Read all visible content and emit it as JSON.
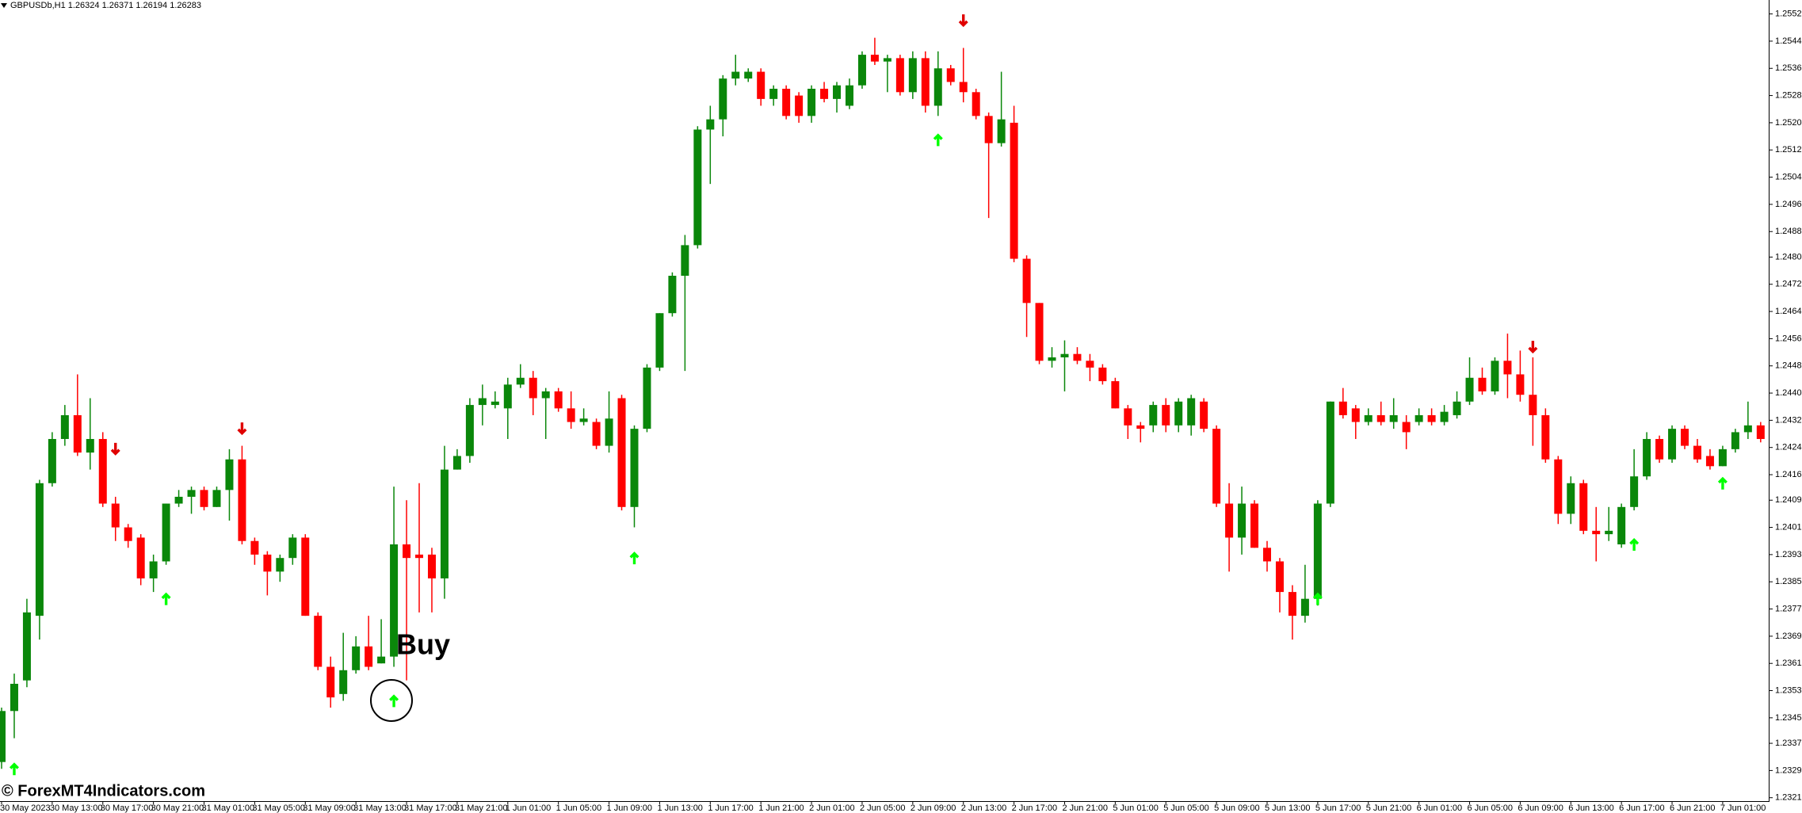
{
  "chart_data": {
    "type": "candlestick",
    "header": "GBPUSDb,H1  1.26324 1.26371 1.26194 1.26283",
    "annotation": "Buy",
    "watermark": "© ForexMT4Indicators.com",
    "up_color": "#0a870a",
    "down_color": "#ff0000",
    "buy_arrow_color": "#00ff00",
    "sell_arrow_color": "#e00000",
    "ylim": [
      1.23205,
      1.25561
    ],
    "yticks": [
      {
        "value": 1.2552,
        "label": "1.25520"
      },
      {
        "value": 1.2544,
        "label": "1.25440"
      },
      {
        "value": 1.2536,
        "label": "1.25360"
      },
      {
        "value": 1.2528,
        "label": "1.25280"
      },
      {
        "value": 1.252,
        "label": "1.25200"
      },
      {
        "value": 1.2512,
        "label": "1.25120"
      },
      {
        "value": 1.2504,
        "label": "1.25040"
      },
      {
        "value": 1.2496,
        "label": "1.24960"
      },
      {
        "value": 1.2488,
        "label": "1.24880"
      },
      1.24805,
      1.24725,
      1.24645,
      1.24565,
      1.24485,
      1.24405,
      1.24325,
      1.24245,
      1.24165,
      {
        "value": 1.2409,
        "label": "1.24090"
      },
      {
        "value": 1.2401,
        "label": "1.24010"
      },
      {
        "value": 1.2393,
        "label": "1.23930"
      },
      {
        "value": 1.2385,
        "label": "1.23850"
      },
      {
        "value": 1.2377,
        "label": "1.23770"
      },
      {
        "value": 1.2369,
        "label": "1.23690"
      },
      {
        "value": 1.2361,
        "label": "1.23610"
      },
      {
        "value": 1.2353,
        "label": "1.23530"
      },
      {
        "value": 1.2345,
        "label": "1.23450"
      },
      1.23375,
      1.23295,
      1.23215
    ],
    "categories": [
      "30 May 2023",
      null,
      null,
      null,
      "30 May 13:00",
      null,
      null,
      null,
      "30 May 17:00",
      null,
      null,
      null,
      "30 May 21:00",
      null,
      null,
      null,
      "31 May 01:00",
      null,
      null,
      null,
      "31 May 05:00",
      null,
      null,
      null,
      "31 May 09:00",
      null,
      null,
      null,
      "31 May 13:00",
      null,
      null,
      null,
      "31 May 17:00",
      null,
      null,
      null,
      "31 May 21:00",
      null,
      null,
      null,
      "1 Jun 01:00",
      null,
      null,
      null,
      "1 Jun 05:00",
      null,
      null,
      null,
      "1 Jun 09:00",
      null,
      null,
      null,
      "1 Jun 13:00",
      null,
      null,
      null,
      "1 Jun 17:00",
      null,
      null,
      null,
      "1 Jun 21:00",
      null,
      null,
      null,
      "2 Jun 01:00",
      null,
      null,
      null,
      "2 Jun 05:00",
      null,
      null,
      null,
      "2 Jun 09:00",
      null,
      null,
      null,
      "2 Jun 13:00",
      null,
      null,
      null,
      "2 Jun 17:00",
      null,
      null,
      null,
      "2 Jun 21:00",
      null,
      null,
      null,
      "5 Jun 01:00",
      null,
      null,
      null,
      "5 Jun 05:00",
      null,
      null,
      null,
      "5 Jun 09:00",
      null,
      null,
      null,
      "5 Jun 13:00",
      null,
      null,
      null,
      "5 Jun 17:00",
      null,
      null,
      null,
      "5 Jun 21:00",
      null,
      null,
      null,
      "6 Jun 01:00",
      null,
      null,
      null,
      "6 Jun 05:00",
      null,
      null,
      null,
      "6 Jun 09:00",
      null,
      null,
      null,
      "6 Jun 13:00",
      null,
      null,
      null,
      "6 Jun 17:00",
      null,
      null,
      null,
      "6 Jun 21:00",
      null,
      null,
      null,
      "7 Jun 01:00",
      null,
      null,
      null
    ],
    "open": [
      1.2332,
      1.2347,
      1.2356,
      1.2375,
      1.2414,
      1.2427,
      1.2434,
      1.2423,
      1.2427,
      1.2408,
      1.2401,
      1.2398,
      1.2386,
      1.2391,
      1.2408,
      1.241,
      1.2412,
      1.2407,
      1.2412,
      1.2421,
      1.2397,
      1.2393,
      1.2388,
      1.2392,
      1.2398,
      1.2375,
      1.236,
      1.2352,
      1.2359,
      1.2366,
      1.2361,
      1.2363,
      1.2396,
      1.2393,
      1.2393,
      1.2386,
      1.2418,
      1.2422,
      1.2437,
      1.2437,
      1.2436,
      1.2443,
      1.2445,
      1.2439,
      1.2441,
      1.2436,
      1.2432,
      1.2432,
      1.2425,
      1.2439,
      1.2407,
      1.243,
      1.2448,
      1.2464,
      1.2475,
      1.2484,
      1.2518,
      1.2521,
      1.2533,
      1.2533,
      1.2535,
      1.2527,
      1.253,
      1.2528,
      1.2522,
      1.253,
      1.2527,
      1.2525,
      1.2531,
      1.254,
      1.2538,
      1.2539,
      1.2529,
      1.2539,
      1.2525,
      1.2536,
      1.2532,
      1.2529,
      1.2522,
      1.2514,
      1.252,
      1.248,
      1.2467,
      1.245,
      1.2451,
      1.2452,
      1.245,
      1.2448,
      1.2444,
      1.2436,
      1.2431,
      1.2431,
      1.2437,
      1.2431,
      1.2431,
      1.2438,
      1.243,
      1.2408,
      1.2398,
      1.2408,
      1.2395,
      1.2391,
      1.2382,
      1.2375,
      1.238,
      1.2408,
      1.2438,
      1.2436,
      1.2432,
      1.2434,
      1.2432,
      1.2432,
      1.2432,
      1.2434,
      1.2432,
      1.2434,
      1.2438,
      1.2445,
      1.2441,
      1.245,
      1.2446,
      1.244,
      1.2434,
      1.2421,
      1.2405,
      1.2414,
      1.24,
      1.2399,
      1.2396,
      1.2407,
      1.2416,
      1.2427,
      1.2421,
      1.243,
      1.2425,
      1.2422,
      1.2419,
      1.2424,
      1.2429,
      1.2431
    ],
    "high": [
      1.2348,
      1.2358,
      1.238,
      1.2415,
      1.2429,
      1.2437,
      1.2446,
      1.2439,
      1.2429,
      1.241,
      1.2402,
      1.2399,
      1.2393,
      1.2408,
      1.2412,
      1.2413,
      1.2413,
      1.2413,
      1.2424,
      1.2425,
      1.2398,
      1.2394,
      1.2393,
      1.2399,
      1.2399,
      1.2376,
      1.2363,
      1.237,
      1.2369,
      1.2375,
      1.2374,
      1.2413,
      1.2409,
      1.2414,
      1.2395,
      1.2425,
      1.2424,
      1.2439,
      1.2443,
      1.2441,
      1.2445,
      1.2449,
      1.2447,
      1.2442,
      1.2442,
      1.2441,
      1.2436,
      1.2433,
      1.2441,
      1.244,
      1.2431,
      1.2449,
      1.2464,
      1.2476,
      1.2487,
      1.2519,
      1.2525,
      1.2534,
      1.254,
      1.2536,
      1.2536,
      1.2531,
      1.2531,
      1.2529,
      1.2531,
      1.2532,
      1.2532,
      1.2533,
      1.2541,
      1.2545,
      1.254,
      1.254,
      1.2541,
      1.2541,
      1.2541,
      1.2537,
      1.2542,
      1.253,
      1.2523,
      1.2535,
      1.2525,
      1.2481,
      1.2467,
      1.2454,
      1.2456,
      1.2454,
      1.2452,
      1.2449,
      1.2445,
      1.2437,
      1.2432,
      1.2438,
      1.2439,
      1.2439,
      1.244,
      1.2439,
      1.2431,
      1.2414,
      1.2413,
      1.2409,
      1.2397,
      1.2392,
      1.2384,
      1.239,
      1.2409,
      1.2438,
      1.2442,
      1.2437,
      1.2436,
      1.2438,
      1.2439,
      1.2434,
      1.2436,
      1.2436,
      1.2437,
      1.2441,
      1.2451,
      1.2448,
      1.2451,
      1.2458,
      1.2453,
      1.2451,
      1.2436,
      1.2422,
      1.2416,
      1.2415,
      1.2407,
      1.2407,
      1.2408,
      1.2424,
      1.2429,
      1.2428,
      1.2431,
      1.2431,
      1.2427,
      1.2424,
      1.2425,
      1.243,
      1.2438,
      1.2432
    ],
    "low": [
      1.233,
      1.2339,
      1.2354,
      1.2368,
      1.2413,
      1.2425,
      1.2422,
      1.2418,
      1.2407,
      1.2397,
      1.2395,
      1.2384,
      1.2382,
      1.239,
      1.2407,
      1.2405,
      1.2406,
      1.2407,
      1.2403,
      1.2396,
      1.239,
      1.2381,
      1.2385,
      1.239,
      1.2375,
      1.2359,
      1.2348,
      1.235,
      1.2358,
      1.2359,
      1.2361,
      1.236,
      1.2356,
      1.2376,
      1.2376,
      1.238,
      1.2418,
      1.242,
      1.2431,
      1.2436,
      1.2427,
      1.2442,
      1.2434,
      1.2427,
      1.2435,
      1.243,
      1.2431,
      1.2424,
      1.2423,
      1.2406,
      1.2401,
      1.2429,
      1.2447,
      1.2463,
      1.2447,
      1.2483,
      1.2502,
      1.2516,
      1.2531,
      1.2532,
      1.2525,
      1.2525,
      1.2521,
      1.252,
      1.252,
      1.2526,
      1.2523,
      1.2524,
      1.253,
      1.2537,
      1.2529,
      1.2528,
      1.2527,
      1.2523,
      1.2522,
      1.2531,
      1.2526,
      1.2521,
      1.2492,
      1.2513,
      1.2479,
      1.2457,
      1.2449,
      1.2448,
      1.2441,
      1.2449,
      1.2444,
      1.2443,
      1.2436,
      1.2427,
      1.2426,
      1.2429,
      1.2429,
      1.2429,
      1.2428,
      1.2429,
      1.2407,
      1.2388,
      1.2393,
      1.2395,
      1.2388,
      1.2376,
      1.2368,
      1.2373,
      1.2378,
      1.2407,
      1.2433,
      1.2427,
      1.2431,
      1.2431,
      1.243,
      1.2424,
      1.2431,
      1.2431,
      1.2431,
      1.2433,
      1.2437,
      1.244,
      1.244,
      1.2439,
      1.2438,
      1.2425,
      1.242,
      1.2402,
      1.2402,
      1.2399,
      1.2391,
      1.2397,
      1.2395,
      1.2406,
      1.2415,
      1.242,
      1.242,
      1.2424,
      1.242,
      1.2418,
      1.2419,
      1.2423,
      1.2427,
      1.2426
    ],
    "close": [
      1.2347,
      1.2355,
      1.2376,
      1.2414,
      1.2427,
      1.2434,
      1.2423,
      1.2427,
      1.2408,
      1.2401,
      1.2397,
      1.2386,
      1.2391,
      1.2408,
      1.241,
      1.2412,
      1.2407,
      1.2412,
      1.2421,
      1.2397,
      1.2393,
      1.2388,
      1.2392,
      1.2398,
      1.2375,
      1.236,
      1.2351,
      1.2359,
      1.2366,
      1.236,
      1.2363,
      1.2396,
      1.2392,
      1.2392,
      1.2386,
      1.2418,
      1.2422,
      1.2437,
      1.2439,
      1.2438,
      1.2443,
      1.2445,
      1.2439,
      1.2441,
      1.2436,
      1.2432,
      1.2433,
      1.2425,
      1.2433,
      1.2407,
      1.243,
      1.2448,
      1.2464,
      1.2475,
      1.2484,
      1.2518,
      1.2521,
      1.2533,
      1.2535,
      1.2535,
      1.2527,
      1.253,
      1.2522,
      1.2522,
      1.253,
      1.2527,
      1.2531,
      1.2531,
      1.254,
      1.2538,
      1.2539,
      1.2529,
      1.2539,
      1.2525,
      1.2536,
      1.2532,
      1.2529,
      1.2522,
      1.2514,
      1.2521,
      1.248,
      1.2467,
      1.245,
      1.2451,
      1.2452,
      1.245,
      1.2448,
      1.2444,
      1.2436,
      1.2431,
      1.243,
      1.2437,
      1.2431,
      1.2438,
      1.2439,
      1.243,
      1.2408,
      1.2398,
      1.2408,
      1.2395,
      1.2391,
      1.2382,
      1.2375,
      1.238,
      1.2408,
      1.2438,
      1.2434,
      1.2432,
      1.2434,
      1.2432,
      1.2434,
      1.2429,
      1.2434,
      1.2432,
      1.2435,
      1.2438,
      1.2445,
      1.2441,
      1.245,
      1.2446,
      1.244,
      1.2434,
      1.2421,
      1.2405,
      1.2414,
      1.24,
      1.2399,
      1.24,
      1.2407,
      1.2416,
      1.2427,
      1.2421,
      1.243,
      1.2425,
      1.2421,
      1.2419,
      1.2424,
      1.2429,
      1.2431,
      1.2427
    ],
    "buy_arrows": [
      {
        "at": 1,
        "value": 1.233
      },
      {
        "at": 13,
        "value": 1.238
      },
      {
        "at": 31,
        "value": 1.235
      },
      {
        "at": 50,
        "value": 1.2392
      },
      {
        "at": 74,
        "value": 1.2515
      },
      {
        "at": 104,
        "value": 1.238
      },
      {
        "at": 129,
        "value": 1.2396
      },
      {
        "at": 136,
        "value": 1.2414
      }
    ],
    "sell_arrows": [
      {
        "at": 9,
        "value": 1.2424
      },
      {
        "at": 19,
        "value": 1.243
      },
      {
        "at": 76,
        "value": 1.255
      },
      {
        "at": 121,
        "value": 1.2454
      }
    ]
  }
}
